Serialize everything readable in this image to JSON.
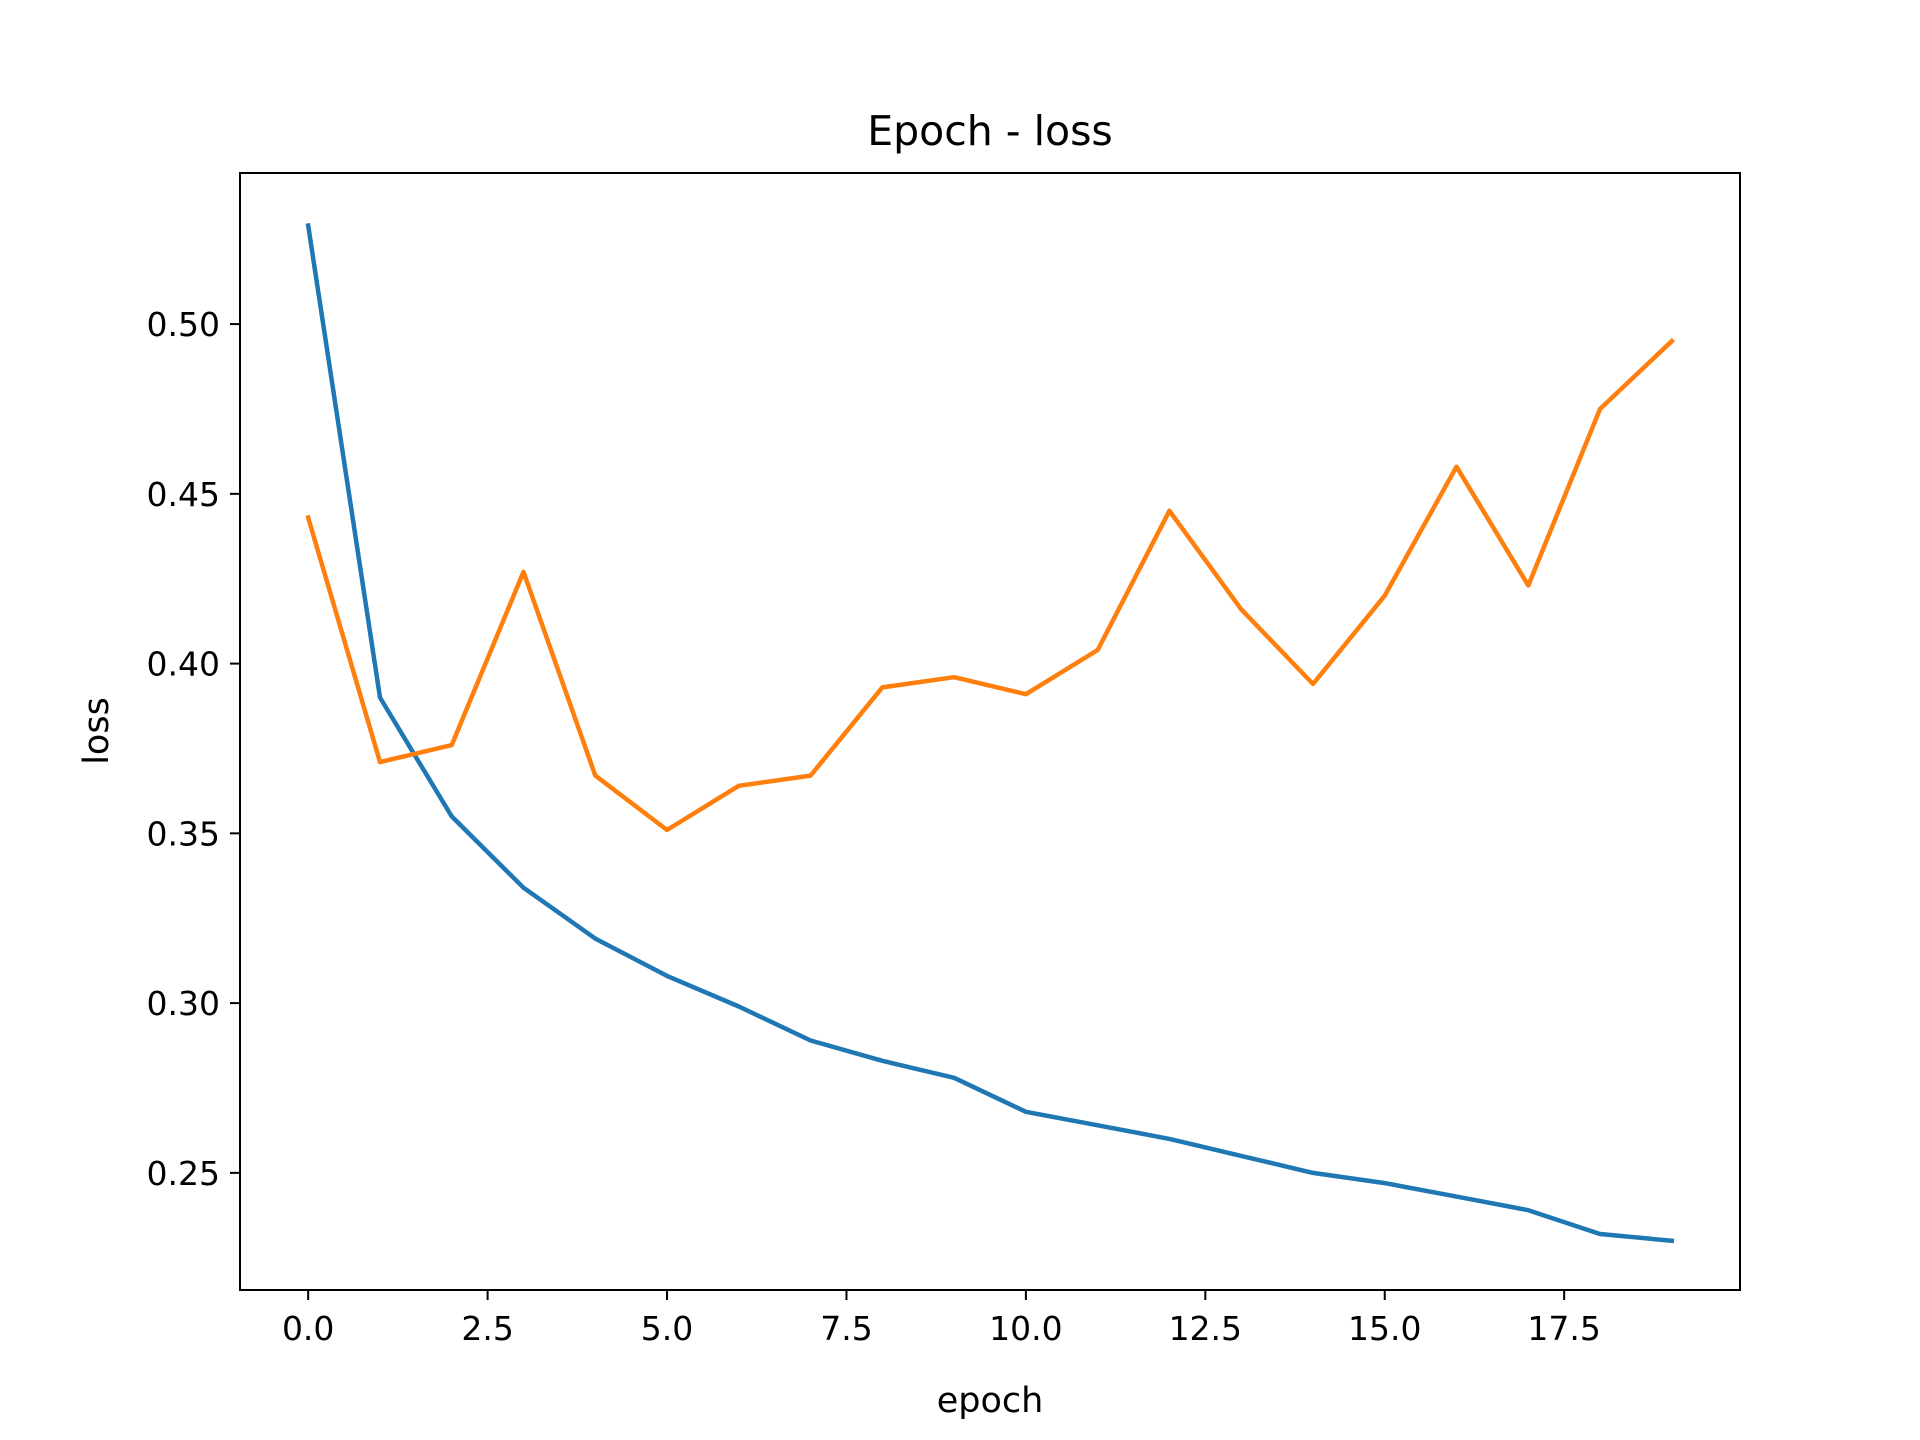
{
  "chart_data": {
    "type": "line",
    "title": "Epoch - loss",
    "xlabel": "epoch",
    "ylabel": "loss",
    "xlim": [
      -0.95,
      19.95
    ],
    "ylim": [
      0.2155,
      0.5445
    ],
    "xticks": [
      0.0,
      2.5,
      5.0,
      7.5,
      10.0,
      12.5,
      15.0,
      17.5
    ],
    "xtick_labels": [
      "0.0",
      "2.5",
      "5.0",
      "7.5",
      "10.0",
      "12.5",
      "15.0",
      "17.5"
    ],
    "yticks": [
      0.25,
      0.3,
      0.35,
      0.4,
      0.45,
      0.5
    ],
    "ytick_labels": [
      "0.25",
      "0.30",
      "0.35",
      "0.40",
      "0.45",
      "0.50"
    ],
    "grid": false,
    "legend": "none",
    "x": [
      0,
      1,
      2,
      3,
      4,
      5,
      6,
      7,
      8,
      9,
      10,
      11,
      12,
      13,
      14,
      15,
      16,
      17,
      18,
      19
    ],
    "series": [
      {
        "color": "#1f77b4",
        "values": [
          0.529,
          0.39,
          0.355,
          0.334,
          0.319,
          0.308,
          0.299,
          0.289,
          0.283,
          0.278,
          0.268,
          0.264,
          0.26,
          0.255,
          0.25,
          0.247,
          0.243,
          0.239,
          0.232,
          0.23
        ]
      },
      {
        "color": "#ff7f0e",
        "values": [
          0.443,
          0.371,
          0.376,
          0.427,
          0.367,
          0.351,
          0.364,
          0.367,
          0.393,
          0.396,
          0.391,
          0.404,
          0.445,
          0.416,
          0.394,
          0.42,
          0.458,
          0.423,
          0.475,
          0.495
        ]
      }
    ]
  }
}
